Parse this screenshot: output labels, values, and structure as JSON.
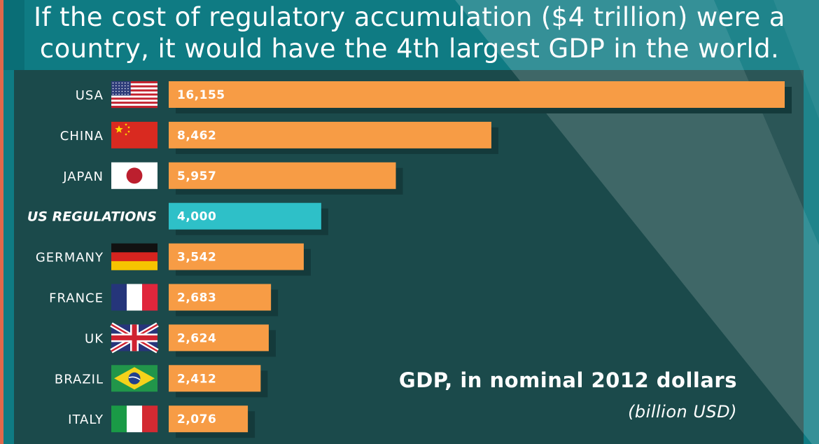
{
  "header": {
    "title_line1": "If the cost of regulatory accumulation ($4 trillion) were a",
    "title_line2": "country, it would have the 4th largest GDP in the world."
  },
  "note": {
    "main": "GDP, in nominal 2012 dollars",
    "sub": "(billion USD)"
  },
  "colors": {
    "background": "#0f7b83",
    "panel": "#1b4a4b",
    "bar": "#f79c45",
    "highlight_bar": "#2ec0c8",
    "shadow": "#143a3b"
  },
  "chart_data": {
    "type": "bar",
    "orientation": "horizontal",
    "categories": [
      "USA",
      "CHINA",
      "JAPAN",
      "US REGULATIONS",
      "GERMANY",
      "FRANCE",
      "UK",
      "BRAZIL",
      "ITALY"
    ],
    "values": [
      16155,
      8462,
      5957,
      4000,
      3542,
      2683,
      2624,
      2412,
      2076
    ],
    "value_labels": [
      "16,155",
      "8,462",
      "5,957",
      "4,000",
      "3,542",
      "2,683",
      "2,624",
      "2,412",
      "2,076"
    ],
    "highlight": "US REGULATIONS",
    "flags": [
      "usa-flag-icon",
      "china-flag-icon",
      "japan-flag-icon",
      "",
      "germany-flag-icon",
      "france-flag-icon",
      "uk-flag-icon",
      "brazil-flag-icon",
      "italy-flag-icon"
    ],
    "xlim": [
      0,
      16155
    ],
    "grid": false,
    "legend": "none"
  }
}
